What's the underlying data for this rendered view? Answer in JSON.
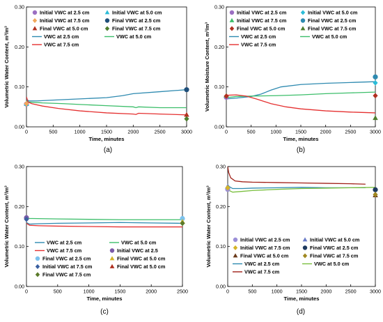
{
  "colors": {
    "vwc_2_5": "#2E8AB0",
    "vwc_5_0": "#3CBE6A",
    "vwc_7_5": "#E53030",
    "initial_2_5": "#9B6FC2",
    "initial_5_0": "#2BBCD8",
    "initial_7_5": "#F2A85A",
    "final_2_5": "#1F4E79",
    "final_5_0": "#B03020",
    "final_7_5": "#4E7E2E",
    "panel_c_final_2_5": "#7CC2EE",
    "panel_c_final_5_0": "#D4B428",
    "panel_c_initial_7_5": "#3A5FA0",
    "panel_c_final_7_5": "#5A7A2A",
    "panel_c_initial_2_5": "#7B5BA8",
    "panel_d_initial_2_5": "#9B8FD8",
    "panel_d_initial_5_0": "#6A7CC8",
    "panel_d_initial_7_5": "#D4B428",
    "panel_d_final_2_5": "#1E3A5F",
    "panel_d_final_5_0": "#6A3A1A",
    "panel_d_final_7_5": "#A08820",
    "panel_d_vwc_2_5": "#2E8AB0",
    "panel_d_vwc_5_0": "#7ABF3E",
    "panel_d_vwc_7_5": "#A02018"
  },
  "chart_data": [
    {
      "panel": "(a)",
      "type": "line",
      "xlabel": "Time, minutes",
      "ylabel": "Volumetric Water Content, m³/m³",
      "xlim": [
        0,
        3000
      ],
      "ylim": [
        0,
        0.3
      ],
      "xticks": [
        "0",
        "500",
        "1000",
        "1500",
        "2000",
        "2500",
        "3000"
      ],
      "yticks": [
        "0.00",
        "0.10",
        "0.20",
        "0.30"
      ],
      "legend_position": "top",
      "legend_columns": 2,
      "series": [
        {
          "name": "VWC at 2.5 cm",
          "color_key": "vwc_2_5",
          "x": [
            0,
            50,
            200,
            500,
            1000,
            1500,
            1800,
            2000,
            2500,
            3000
          ],
          "y": [
            0.068,
            0.065,
            0.065,
            0.067,
            0.07,
            0.073,
            0.078,
            0.083,
            0.088,
            0.093
          ]
        },
        {
          "name": "VWC at 5.0 cm",
          "color_key": "vwc_5_0",
          "x": [
            0,
            50,
            300,
            700,
            1000,
            1500,
            2000,
            2050,
            2100,
            2500,
            3000
          ],
          "y": [
            0.065,
            0.062,
            0.06,
            0.058,
            0.056,
            0.053,
            0.05,
            0.048,
            0.05,
            0.048,
            0.048
          ]
        },
        {
          "name": "VWC at 7.5 cm",
          "color_key": "vwc_7_5",
          "x": [
            0,
            30,
            100,
            300,
            600,
            1000,
            1500,
            2000,
            2050,
            2100,
            2500,
            3000
          ],
          "y": [
            0.075,
            0.062,
            0.058,
            0.052,
            0.046,
            0.04,
            0.035,
            0.032,
            0.031,
            0.034,
            0.032,
            0.03
          ]
        }
      ],
      "markers": [
        {
          "name": "Initial VWC at 2.5 cm",
          "shape": "circle",
          "color_key": "initial_2_5",
          "x": 0,
          "y": 0.057
        },
        {
          "name": "Initial VWC at 5.0 cm",
          "shape": "triangle",
          "color_key": "initial_5_0",
          "x": 0,
          "y": 0.057
        },
        {
          "name": "Initial VWC at 7.5 cm",
          "shape": "diamond",
          "color_key": "initial_7_5",
          "x": 0,
          "y": 0.058
        },
        {
          "name": "Final VWC at 2.5 cm",
          "shape": "circle",
          "color_key": "final_2_5",
          "x": 3000,
          "y": 0.093
        },
        {
          "name": "Final VWC at 5.0 cm",
          "shape": "triangle",
          "color_key": "final_5_0",
          "x": 3000,
          "y": 0.03
        },
        {
          "name": "Final VWC at 7.5 cm",
          "shape": "diamond",
          "color_key": "final_7_5",
          "x": 3000,
          "y": 0.02
        }
      ],
      "legend": [
        {
          "label": "Initial VWC at 2.5 cm",
          "shape": "circle",
          "color_key": "initial_2_5"
        },
        {
          "label": "Initial VWC at 5.0 cm",
          "shape": "triangle",
          "color_key": "initial_5_0"
        },
        {
          "label": "Initial VWC at 7.5 cm",
          "shape": "diamond",
          "color_key": "initial_7_5"
        },
        {
          "label": "Final VWC at 2.5 cm",
          "shape": "circle",
          "color_key": "final_2_5"
        },
        {
          "label": "Final VWC at 5.0 cm",
          "shape": "triangle",
          "color_key": "final_5_0"
        },
        {
          "label": "Final VWC at 7.5 cm",
          "shape": "diamond",
          "color_key": "final_7_5"
        },
        {
          "label": "VWC at 2.5 cm",
          "shape": "line",
          "color_key": "vwc_2_5"
        },
        {
          "label": "VWC at 5.0 cm",
          "shape": "line",
          "color_key": "vwc_5_0"
        },
        {
          "label": "VWC at 7.5 cm",
          "shape": "line",
          "color_key": "vwc_7_5"
        }
      ]
    },
    {
      "panel": "(b)",
      "type": "line",
      "xlabel": "Time, minutes",
      "ylabel": "Volumetric Moisture Content, m³/m³",
      "xlim": [
        0,
        3000
      ],
      "ylim": [
        0,
        0.3
      ],
      "xticks": [
        "0",
        "500",
        "1000",
        "1500",
        "2000",
        "2500",
        "3000"
      ],
      "yticks": [
        "0.00",
        "0.10",
        "0.20",
        "0.30"
      ],
      "legend_position": "top",
      "legend_columns": 2,
      "series": [
        {
          "name": "VWC at 2.5 cm",
          "color_key": "vwc_2_5",
          "x": [
            0,
            200,
            500,
            700,
            900,
            1100,
            1500,
            2000,
            2500,
            3000
          ],
          "y": [
            0.07,
            0.072,
            0.076,
            0.082,
            0.092,
            0.1,
            0.106,
            0.109,
            0.111,
            0.113
          ]
        },
        {
          "name": "VWC at 5.0 cm",
          "color_key": "vwc_5_0",
          "x": [
            0,
            200,
            500,
            1000,
            1500,
            2000,
            2500,
            3000
          ],
          "y": [
            0.073,
            0.076,
            0.077,
            0.078,
            0.08,
            0.083,
            0.085,
            0.087
          ]
        },
        {
          "name": "VWC at 7.5 cm",
          "color_key": "vwc_7_5",
          "x": [
            0,
            200,
            400,
            600,
            900,
            1200,
            1500,
            2000,
            2500,
            3000
          ],
          "y": [
            0.079,
            0.08,
            0.077,
            0.07,
            0.058,
            0.05,
            0.045,
            0.04,
            0.037,
            0.035
          ]
        }
      ],
      "markers": [
        {
          "name": "Initial VWC at 2.5 cm",
          "shape": "circle",
          "color_key": "initial_2_5",
          "x": 0,
          "y": 0.074
        },
        {
          "name": "Initial VWC at 7.5 cm",
          "shape": "triangle",
          "color_key": "vwc_5_0",
          "x": 0,
          "y": 0.078
        },
        {
          "name": "Final VWC at 5.0 cm",
          "shape": "diamond",
          "color_key": "final_5_0",
          "x": 0,
          "y": 0.077
        },
        {
          "name": "Initial VWC at 5.0 cm",
          "shape": "diamond",
          "color_key": "initial_5_0",
          "x": 3000,
          "y": 0.11
        },
        {
          "name": "Final VWC at 2.5 cm",
          "shape": "circle",
          "color_key": "vwc_2_5",
          "x": 3000,
          "y": 0.125
        },
        {
          "name": "Final VWC at 7.5 cm",
          "shape": "triangle",
          "color_key": "final_7_5",
          "x": 3000,
          "y": 0.022
        },
        {
          "name": "Final VWC at 5.0 cm",
          "shape": "diamond",
          "color_key": "final_5_0",
          "x": 3000,
          "y": 0.078
        }
      ],
      "legend": [
        {
          "label": "Initial VWC at 2.5 cm",
          "shape": "circle",
          "color_key": "initial_2_5"
        },
        {
          "label": "Initial VWC at 5.0 cm",
          "shape": "diamond",
          "color_key": "initial_5_0"
        },
        {
          "label": "Initial VWC at 7.5 cm",
          "shape": "triangle",
          "color_key": "vwc_5_0"
        },
        {
          "label": "Final VWC at 2.5 cm",
          "shape": "circle",
          "color_key": "vwc_2_5"
        },
        {
          "label": "Final VWC at 5.0 cm",
          "shape": "diamond",
          "color_key": "final_5_0"
        },
        {
          "label": "Final VWC at 7.5 cm",
          "shape": "triangle",
          "color_key": "final_7_5"
        },
        {
          "label": "VWC at 2.5 cm",
          "shape": "line",
          "color_key": "vwc_2_5"
        },
        {
          "label": "VWC at 5.0 cm",
          "shape": "line",
          "color_key": "vwc_5_0"
        },
        {
          "label": "VWC at 7.5 cm",
          "shape": "line",
          "color_key": "vwc_7_5"
        }
      ]
    },
    {
      "panel": "(c)",
      "type": "line",
      "xlabel": "Time, minutes",
      "ylabel": "Volumetric Water Content, m³/m³",
      "xlim": [
        0,
        2500
      ],
      "ylim": [
        0,
        0.3
      ],
      "xticks": [
        "0",
        "500",
        "1000",
        "1500",
        "2000",
        "2500"
      ],
      "yticks": [
        "0.00",
        "0.10",
        "0.20",
        "0.30"
      ],
      "legend_position": "bottom",
      "legend_columns": 2,
      "series": [
        {
          "name": "VWC at 2.5 cm",
          "color_key": "vwc_2_5",
          "x": [
            0,
            50,
            200,
            500,
            1000,
            1500,
            2000,
            2500
          ],
          "y": [
            0.16,
            0.156,
            0.157,
            0.158,
            0.159,
            0.16,
            0.159,
            0.158
          ]
        },
        {
          "name": "VWC at 5.0 cm",
          "color_key": "vwc_5_0",
          "x": [
            0,
            100,
            500,
            1000,
            1500,
            2000,
            2500
          ],
          "y": [
            0.17,
            0.17,
            0.169,
            0.168,
            0.167,
            0.167,
            0.167
          ]
        },
        {
          "name": "VWC at 7.5 cm",
          "color_key": "vwc_7_5",
          "x": [
            0,
            50,
            200,
            500,
            1000,
            1500,
            2000,
            2500
          ],
          "y": [
            0.158,
            0.153,
            0.152,
            0.151,
            0.15,
            0.149,
            0.149,
            0.149
          ]
        }
      ],
      "markers": [
        {
          "name": "Initial VWC at 2.5",
          "shape": "circle",
          "color_key": "panel_c_initial_2_5",
          "x": 0,
          "y": 0.172
        },
        {
          "name": "Initial VWC at 7.5 cm",
          "shape": "diamond",
          "color_key": "panel_c_initial_7_5",
          "x": 0,
          "y": 0.168
        },
        {
          "name": "Final VWC at 2.5 cm",
          "shape": "circle",
          "color_key": "panel_c_final_2_5",
          "x": 2500,
          "y": 0.17
        },
        {
          "name": "Final VWC at 5.0 cm",
          "shape": "triangle",
          "color_key": "panel_c_final_5_0",
          "x": 2500,
          "y": 0.162
        },
        {
          "name": "Final VWC at 7.5 cm",
          "shape": "diamond",
          "color_key": "panel_c_final_7_5",
          "x": 2500,
          "y": 0.158
        }
      ],
      "legend": [
        {
          "label": "VWC at 2.5 cm",
          "shape": "line",
          "color_key": "vwc_2_5"
        },
        {
          "label": "VWC at 5.0 cm",
          "shape": "line",
          "color_key": "vwc_5_0"
        },
        {
          "label": "VWC at 7.5 cm",
          "shape": "line",
          "color_key": "vwc_7_5"
        },
        {
          "label": "Initial VWC at 2.5",
          "shape": "circle",
          "color_key": "panel_c_initial_2_5"
        },
        {
          "label": "Final VWC at 2.5 cm",
          "shape": "circle",
          "color_key": "panel_c_final_2_5"
        },
        {
          "label": "Final VWC at 5.0 cm",
          "shape": "triangle",
          "color_key": "panel_c_final_5_0"
        },
        {
          "label": "Initial VWC at 7.5 cm",
          "shape": "diamond",
          "color_key": "panel_c_initial_7_5"
        },
        {
          "label": "Final VWC at 5.0 cm",
          "shape": "triangle",
          "color_key": "final_5_0"
        },
        {
          "label": "Final VWC at 7.5 cm",
          "shape": "diamond",
          "color_key": "panel_c_final_7_5"
        }
      ]
    },
    {
      "panel": "(d)",
      "type": "line",
      "xlabel": "Time, minutes",
      "ylabel": "Volumetric Water Content, m³/m³",
      "xlim": [
        0,
        3000
      ],
      "ylim": [
        0,
        0.3
      ],
      "xticks": [
        "0",
        "500",
        "1000",
        "1500",
        "2000",
        "2500",
        "3000"
      ],
      "yticks": [
        "0.00",
        "0.10",
        "0.20",
        "0.30"
      ],
      "legend_position": "bottom",
      "legend_columns": 2,
      "series": [
        {
          "name": "VWC at 2.5 cm",
          "color_key": "panel_d_vwc_2_5",
          "x": [
            0,
            30,
            100,
            300,
            500,
            1000,
            1500,
            2000,
            2500,
            2800
          ],
          "y": [
            0.255,
            0.25,
            0.245,
            0.245,
            0.246,
            0.247,
            0.248,
            0.247,
            0.247,
            0.247
          ]
        },
        {
          "name": "VWC at 5.0 cm",
          "color_key": "panel_d_vwc_5_0",
          "x": [
            0,
            30,
            100,
            300,
            500,
            1000,
            1500,
            2000,
            2500,
            3000
          ],
          "y": [
            0.25,
            0.24,
            0.236,
            0.238,
            0.24,
            0.243,
            0.245,
            0.246,
            0.247,
            0.248
          ]
        },
        {
          "name": "VWC at 7.5 cm",
          "color_key": "panel_d_vwc_7_5",
          "x": [
            0,
            20,
            60,
            150,
            300,
            500,
            1000,
            1500,
            2000,
            2500,
            2800
          ],
          "y": [
            0.3,
            0.285,
            0.272,
            0.264,
            0.262,
            0.261,
            0.26,
            0.259,
            0.258,
            0.257,
            0.256
          ]
        }
      ],
      "markers": [
        {
          "name": "Initial VWC at 2.5 cm",
          "shape": "circle",
          "color_key": "panel_d_initial_2_5",
          "x": 0,
          "y": 0.243
        },
        {
          "name": "Initial VWC at 5.0 cm",
          "shape": "triangle",
          "color_key": "panel_d_initial_5_0",
          "x": 0,
          "y": 0.25
        },
        {
          "name": "Initial VWC at 7.5 cm",
          "shape": "diamond",
          "color_key": "panel_d_initial_7_5",
          "x": 0,
          "y": 0.247
        },
        {
          "name": "Final VWC at 2.5 cm",
          "shape": "circle",
          "color_key": "panel_d_final_2_5",
          "x": 3000,
          "y": 0.242
        },
        {
          "name": "Final VWC at 5.0 cm",
          "shape": "triangle",
          "color_key": "panel_d_final_5_0",
          "x": 3000,
          "y": 0.228
        },
        {
          "name": "Final VWC at 7.5 cm",
          "shape": "diamond",
          "color_key": "panel_d_final_7_5",
          "x": 3000,
          "y": 0.23
        }
      ],
      "legend": [
        {
          "label": "Initial VWC at 2.5 cm",
          "shape": "circle",
          "color_key": "panel_d_initial_2_5"
        },
        {
          "label": "Initial VWC at 5.0 cm",
          "shape": "triangle",
          "color_key": "panel_d_initial_5_0"
        },
        {
          "label": "Initial VWC at 7.5 cm",
          "shape": "diamond",
          "color_key": "panel_d_initial_7_5"
        },
        {
          "label": "Final VWC at 2.5 cm",
          "shape": "circle",
          "color_key": "panel_d_final_2_5"
        },
        {
          "label": "Final VWC at 5.0 cm",
          "shape": "triangle",
          "color_key": "panel_d_final_5_0"
        },
        {
          "label": "Final VWC at 7.5 cm",
          "shape": "diamond",
          "color_key": "panel_d_final_7_5"
        },
        {
          "label": "VWC at 2.5 cm",
          "shape": "line",
          "color_key": "panel_d_vwc_2_5"
        },
        {
          "label": "VWC at 5.0 cm",
          "shape": "line",
          "color_key": "panel_d_vwc_5_0"
        },
        {
          "label": "VWC at 7.5 cm",
          "shape": "line",
          "color_key": "panel_d_vwc_7_5"
        }
      ]
    }
  ]
}
